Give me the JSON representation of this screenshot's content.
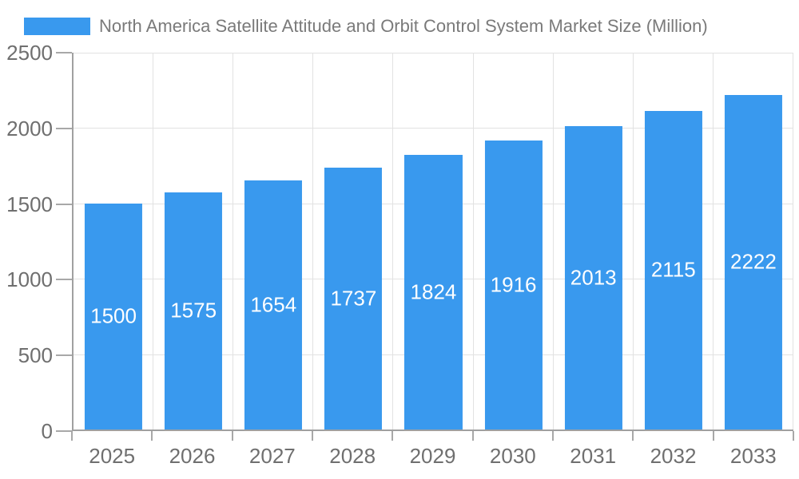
{
  "chart_data": {
    "type": "bar",
    "title": "North America Satellite Attitude and Orbit Control System Market Size (Million)",
    "legend": [
      {
        "label": "North America Satellite Attitude and Orbit Control System Market Size (Million)",
        "color": "#3999EE"
      }
    ],
    "legend_position": "top-left",
    "categories": [
      "2025",
      "2026",
      "2027",
      "2028",
      "2029",
      "2030",
      "2031",
      "2032",
      "2033"
    ],
    "values": [
      1500,
      1575,
      1654,
      1737,
      1824,
      1916,
      2013,
      2115,
      2222
    ],
    "bar_value_labels": [
      "1500",
      "1575",
      "1654",
      "1737",
      "1824",
      "1916",
      "2013",
      "2115",
      "2222"
    ],
    "xlabel": "",
    "ylabel": "",
    "ylim": [
      0,
      2500
    ],
    "yticks": [
      0,
      500,
      1000,
      1500,
      2000,
      2500
    ],
    "grid": true,
    "colors": {
      "bar_fill": "#3999EE",
      "bar_label_text": "#FFFFFF",
      "axis_line": "#A0A0A0",
      "tick_mark": "#A8A8A8",
      "grid_line": "#E2E2E2",
      "tick_label_text": "#6F6F6F",
      "title_text": "#7A7A7A",
      "background": "#FFFFFF"
    }
  }
}
